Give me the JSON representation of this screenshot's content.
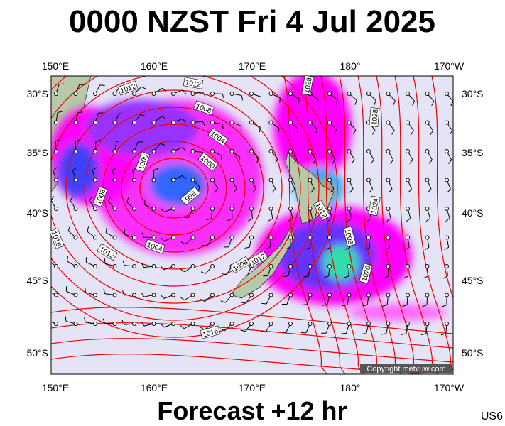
{
  "header": {
    "title": "0000 NZST Fri 4 Jul 2025"
  },
  "footer": {
    "forecast": "Forecast +12 hr",
    "code": "US6"
  },
  "map": {
    "lon_labels": [
      "150°E",
      "160°E",
      "170°E",
      "180°",
      "170°W"
    ],
    "lat_labels": [
      "30°S",
      "35°S",
      "40°S",
      "45°S",
      "50°S"
    ],
    "isobar_labels": [
      "1012",
      "1012",
      "1008",
      "1004",
      "1000",
      "996",
      "1000",
      "1008",
      "1012",
      "1004",
      "1016",
      "1016",
      "1012",
      "1008",
      "1012",
      "1008",
      "1020",
      "1024",
      "1028",
      "1028"
    ],
    "copyright": "Copyright metvuw.com"
  }
}
